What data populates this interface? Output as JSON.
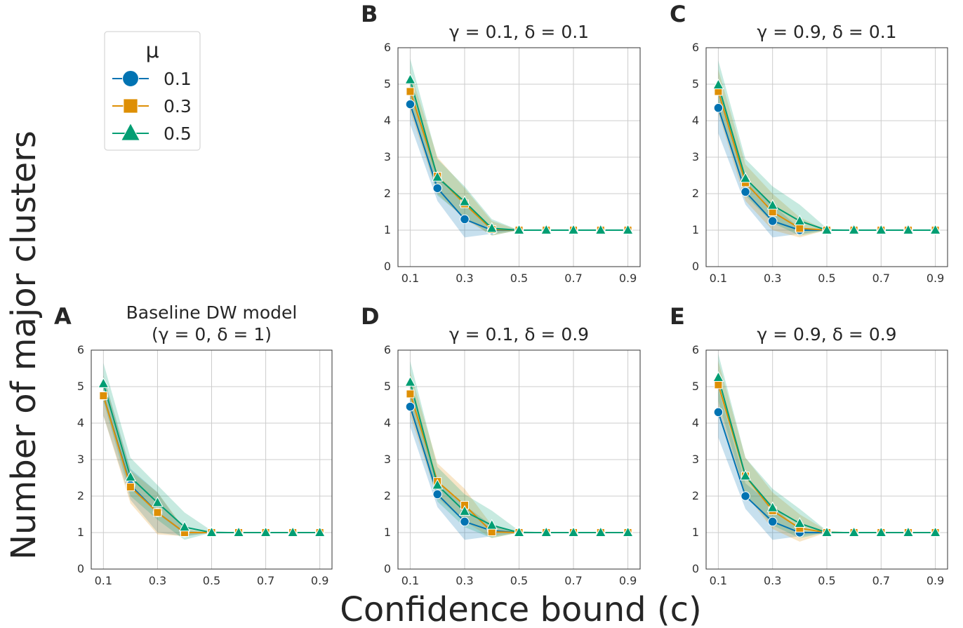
{
  "figure": {
    "xlabel": "Confidence bound (c)",
    "ylabel": "Number of major clusters"
  },
  "legend": {
    "title": "μ",
    "placement": "upper-left",
    "entries": [
      "0.1",
      "0.3",
      "0.5"
    ]
  },
  "colors": {
    "mu_0_1": "#0173b2",
    "mu_0_3": "#de8f05",
    "mu_0_5": "#029e73"
  },
  "markers": {
    "mu_0_1": "circle",
    "mu_0_3": "square",
    "mu_0_5": "triangle"
  },
  "chart_data": [
    {
      "panel": "A",
      "type": "line",
      "title": "Baseline DW model",
      "subtitle": "(γ = 0, δ = 1)",
      "x": [
        0.1,
        0.2,
        0.3,
        0.4,
        0.5,
        0.6,
        0.7,
        0.8,
        0.9
      ],
      "xticks": [
        "0.1",
        "0.3",
        "0.5",
        "0.7",
        "0.9"
      ],
      "yticks": [
        "0",
        "1",
        "2",
        "3",
        "4",
        "5",
        "6"
      ],
      "ylim": [
        0,
        6
      ],
      "grid": true,
      "series": [
        {
          "name": "0.1",
          "values": [
            4.75,
            2.3,
            1.55,
            1.0,
            1,
            1,
            1,
            1,
            1
          ],
          "lower": [
            4.2,
            1.9,
            1.0,
            0.9,
            1,
            1,
            1,
            1,
            1
          ],
          "upper": [
            5.3,
            2.75,
            2.1,
            1.05,
            1,
            1,
            1,
            1,
            1
          ]
        },
        {
          "name": "0.3",
          "values": [
            4.75,
            2.25,
            1.55,
            1.0,
            1,
            1,
            1,
            1,
            1
          ],
          "lower": [
            4.2,
            1.8,
            0.95,
            0.9,
            1,
            1,
            1,
            1,
            1
          ],
          "upper": [
            5.3,
            2.7,
            2.1,
            1.1,
            1,
            1,
            1,
            1,
            1
          ]
        },
        {
          "name": "0.5",
          "values": [
            5.08,
            2.52,
            1.82,
            1.15,
            1,
            1,
            1,
            1,
            1
          ],
          "lower": [
            4.6,
            2.0,
            1.35,
            0.8,
            1,
            1,
            1,
            1,
            1
          ],
          "upper": [
            5.65,
            3.05,
            2.3,
            1.55,
            1.05,
            1,
            1,
            1,
            1
          ]
        }
      ]
    },
    {
      "panel": "B",
      "type": "line",
      "title": "γ = 0.1, δ = 0.1",
      "subtitle": "",
      "x": [
        0.1,
        0.2,
        0.3,
        0.4,
        0.5,
        0.6,
        0.7,
        0.8,
        0.9
      ],
      "xticks": [
        "0.1",
        "0.3",
        "0.5",
        "0.7",
        "0.9"
      ],
      "yticks": [
        "0",
        "1",
        "2",
        "3",
        "4",
        "5",
        "6"
      ],
      "ylim": [
        0,
        6
      ],
      "grid": true,
      "series": [
        {
          "name": "0.1",
          "values": [
            4.45,
            2.15,
            1.3,
            1.0,
            1,
            1,
            1,
            1,
            1
          ],
          "lower": [
            3.9,
            1.8,
            0.8,
            0.9,
            1,
            1,
            1,
            1,
            1
          ],
          "upper": [
            5.0,
            2.5,
            1.8,
            1.05,
            1,
            1,
            1,
            1,
            1
          ]
        },
        {
          "name": "0.3",
          "values": [
            4.8,
            2.48,
            1.72,
            1.02,
            1,
            1,
            1,
            1,
            1
          ],
          "lower": [
            4.25,
            2.0,
            1.3,
            0.85,
            1,
            1,
            1,
            1,
            1
          ],
          "upper": [
            5.35,
            3.0,
            2.15,
            1.25,
            1,
            1,
            1,
            1,
            1
          ]
        },
        {
          "name": "0.5",
          "values": [
            5.12,
            2.45,
            1.78,
            1.05,
            1,
            1,
            1,
            1,
            1
          ],
          "lower": [
            4.55,
            1.95,
            1.35,
            0.85,
            1,
            1,
            1,
            1,
            1
          ],
          "upper": [
            5.7,
            2.95,
            2.2,
            1.3,
            1,
            1,
            1,
            1,
            1
          ]
        }
      ]
    },
    {
      "panel": "C",
      "type": "line",
      "title": "γ = 0.9, δ = 0.1",
      "subtitle": "",
      "x": [
        0.1,
        0.2,
        0.3,
        0.4,
        0.5,
        0.6,
        0.7,
        0.8,
        0.9
      ],
      "xticks": [
        "0.1",
        "0.3",
        "0.5",
        "0.7",
        "0.9"
      ],
      "yticks": [
        "0",
        "1",
        "2",
        "3",
        "4",
        "5",
        "6"
      ],
      "ylim": [
        0,
        6
      ],
      "grid": true,
      "series": [
        {
          "name": "0.1",
          "values": [
            4.35,
            2.05,
            1.25,
            1.0,
            1,
            1,
            1,
            1,
            1
          ],
          "lower": [
            3.65,
            1.7,
            0.8,
            0.9,
            1,
            1,
            1,
            1,
            1
          ],
          "upper": [
            5.0,
            2.45,
            1.7,
            1.05,
            1,
            1,
            1,
            1,
            1
          ]
        },
        {
          "name": "0.3",
          "values": [
            4.8,
            2.3,
            1.5,
            1.05,
            1,
            1,
            1,
            1,
            1
          ],
          "lower": [
            4.2,
            1.8,
            1.0,
            0.8,
            1,
            1,
            1,
            1,
            1
          ],
          "upper": [
            5.4,
            2.8,
            2.0,
            1.35,
            1,
            1,
            1,
            1,
            1
          ]
        },
        {
          "name": "0.5",
          "values": [
            4.98,
            2.42,
            1.68,
            1.25,
            1,
            1,
            1,
            1,
            1
          ],
          "lower": [
            4.35,
            1.95,
            1.2,
            0.85,
            1,
            1,
            1,
            1,
            1
          ],
          "upper": [
            5.65,
            2.95,
            2.2,
            1.7,
            1.05,
            1,
            1,
            1,
            1
          ]
        }
      ]
    },
    {
      "panel": "D",
      "type": "line",
      "title": "γ = 0.1, δ = 0.9",
      "subtitle": "",
      "x": [
        0.1,
        0.2,
        0.3,
        0.4,
        0.5,
        0.6,
        0.7,
        0.8,
        0.9
      ],
      "xticks": [
        "0.1",
        "0.3",
        "0.5",
        "0.7",
        "0.9"
      ],
      "yticks": [
        "0",
        "1",
        "2",
        "3",
        "4",
        "5",
        "6"
      ],
      "ylim": [
        0,
        6
      ],
      "grid": true,
      "series": [
        {
          "name": "0.1",
          "values": [
            4.45,
            2.05,
            1.3,
            1.05,
            1,
            1,
            1,
            1,
            1
          ],
          "lower": [
            3.9,
            1.7,
            0.8,
            0.9,
            1,
            1,
            1,
            1,
            1
          ],
          "upper": [
            5.0,
            2.4,
            1.75,
            1.2,
            1,
            1,
            1,
            1,
            1
          ]
        },
        {
          "name": "0.3",
          "values": [
            4.8,
            2.4,
            1.75,
            1.02,
            1,
            1,
            1,
            1,
            1
          ],
          "lower": [
            4.2,
            1.95,
            1.3,
            0.85,
            1,
            1,
            1,
            1,
            1
          ],
          "upper": [
            5.4,
            2.9,
            2.2,
            1.2,
            1,
            1,
            1,
            1,
            1
          ]
        },
        {
          "name": "0.5",
          "values": [
            5.12,
            2.3,
            1.58,
            1.2,
            1,
            1,
            1,
            1,
            1
          ],
          "lower": [
            4.55,
            1.85,
            1.15,
            0.85,
            1,
            1,
            1,
            1,
            1
          ],
          "upper": [
            5.7,
            2.8,
            2.05,
            1.6,
            1.05,
            1,
            1,
            1,
            1
          ]
        }
      ]
    },
    {
      "panel": "E",
      "type": "line",
      "title": "γ = 0.9, δ = 0.9",
      "subtitle": "",
      "x": [
        0.1,
        0.2,
        0.3,
        0.4,
        0.5,
        0.6,
        0.7,
        0.8,
        0.9
      ],
      "xticks": [
        "0.1",
        "0.3",
        "0.5",
        "0.7",
        "0.9"
      ],
      "yticks": [
        "0",
        "1",
        "2",
        "3",
        "4",
        "5",
        "6"
      ],
      "ylim": [
        0,
        6
      ],
      "grid": true,
      "series": [
        {
          "name": "0.1",
          "values": [
            4.3,
            2.0,
            1.3,
            1.0,
            1,
            1,
            1,
            1,
            1
          ],
          "lower": [
            3.6,
            1.65,
            0.8,
            0.9,
            1,
            1,
            1,
            1,
            1
          ],
          "upper": [
            4.95,
            2.35,
            1.75,
            1.05,
            1,
            1,
            1,
            1,
            1
          ]
        },
        {
          "name": "0.3",
          "values": [
            5.05,
            2.55,
            1.6,
            1.12,
            1,
            1,
            1,
            1,
            1
          ],
          "lower": [
            4.4,
            2.05,
            1.1,
            0.75,
            1,
            1,
            1,
            1,
            1
          ],
          "upper": [
            5.7,
            3.05,
            2.1,
            1.5,
            1.05,
            1,
            1,
            1,
            1
          ]
        },
        {
          "name": "0.5",
          "values": [
            5.25,
            2.55,
            1.68,
            1.25,
            1,
            1,
            1,
            1,
            1
          ],
          "lower": [
            4.6,
            2.05,
            1.2,
            0.85,
            1,
            1,
            1,
            1,
            1
          ],
          "upper": [
            5.9,
            3.05,
            2.2,
            1.65,
            1.05,
            1,
            1,
            1,
            1
          ]
        }
      ]
    }
  ]
}
